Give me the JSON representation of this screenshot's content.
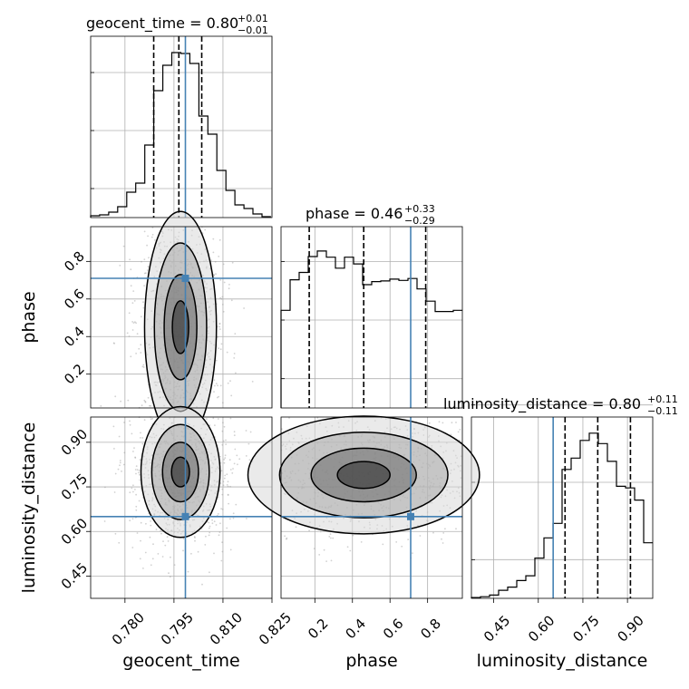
{
  "chart_data": {
    "type": "corner",
    "parameters": [
      "geocent_time",
      "phase",
      "luminosity_distance"
    ],
    "truths": {
      "geocent_time": 0.7985,
      "phase": 0.71,
      "luminosity_distance": 0.65
    },
    "colors": {
      "truth": "#4682b4",
      "line": "#000000",
      "grid": "#b0b0b0",
      "scatter": "#9a9a9a"
    },
    "grid": true,
    "titles": [
      {
        "name": "geocent_time = 0.80",
        "sup": "+0.01",
        "sub": "−0.01"
      },
      {
        "name": "phase = 0.46",
        "sup": "+0.33",
        "sub": "−0.29"
      },
      {
        "name": "luminosity_distance = 0.80",
        "sup": "+0.11",
        "sub": "−0.11"
      }
    ],
    "axis_labels": {
      "x": [
        "geocent_time",
        "phase",
        "luminosity_distance"
      ],
      "y": [
        "phase",
        "luminosity_distance"
      ]
    },
    "ranges": {
      "geocent_time": [
        0.7695,
        0.825
      ],
      "phase": [
        0.02,
        0.985
      ],
      "luminosity_distance": [
        0.375,
        0.985
      ]
    },
    "ticks": {
      "geocent_time": {
        "values": [
          0.78,
          0.795,
          0.81,
          0.825
        ],
        "labels": [
          "0.780",
          "0.795",
          "0.810",
          "0.825"
        ]
      },
      "phase": {
        "values": [
          0.2,
          0.4,
          0.6,
          0.8
        ],
        "labels": [
          "0.2",
          "0.4",
          "0.6",
          "0.8"
        ]
      },
      "luminosity_distance": {
        "values": [
          0.45,
          0.6,
          0.75,
          0.9
        ],
        "labels": [
          "0.45",
          "0.60",
          "0.75",
          "0.90"
        ]
      }
    },
    "histograms": {
      "geocent_time": {
        "edges": [
          0.7695,
          0.77226,
          0.77502,
          0.77778,
          0.78054,
          0.7833,
          0.78606,
          0.78882,
          0.79158,
          0.79434,
          0.7971,
          0.79986,
          0.80262,
          0.80538,
          0.80814,
          0.8109,
          0.81366,
          0.81642,
          0.81918,
          0.82194,
          0.8247
        ],
        "counts": [
          2,
          3,
          6,
          12,
          28,
          38,
          80,
          140,
          168,
          182,
          181,
          170,
          112,
          92,
          52,
          30,
          14,
          10,
          4,
          1
        ],
        "quantiles": [
          0.7888,
          0.7965,
          0.8035
        ],
        "ymax": 200,
        "yticks": [
          32,
          96,
          160
        ]
      },
      "phase": {
        "edges": [
          0.02,
          0.0683,
          0.1165,
          0.1648,
          0.213,
          0.2613,
          0.3095,
          0.3578,
          0.406,
          0.4543,
          0.5025,
          0.5508,
          0.599,
          0.6473,
          0.6955,
          0.7438,
          0.792,
          0.8403,
          0.8885,
          0.9368,
          0.985
        ],
        "counts": [
          160,
          210,
          222,
          248,
          257,
          247,
          229,
          247,
          236,
          202,
          207,
          208,
          211,
          209,
          212,
          195,
          175,
          158,
          158,
          160
        ],
        "quantiles": [
          0.17,
          0.46,
          0.79
        ],
        "ymax": 297,
        "yticks": [
          48,
          144,
          240
        ]
      },
      "luminosity_distance": {
        "edges": [
          0.375,
          0.4055,
          0.436,
          0.4665,
          0.497,
          0.5275,
          0.558,
          0.5885,
          0.619,
          0.6495,
          0.68,
          0.7105,
          0.741,
          0.7715,
          0.802,
          0.8325,
          0.863,
          0.8935,
          0.924,
          0.9545,
          0.985
        ],
        "counts": [
          1,
          2,
          4,
          10,
          14,
          22,
          28,
          50,
          75,
          93,
          160,
          174,
          196,
          205,
          192,
          170,
          139,
          137,
          122,
          69
        ],
        "quantiles": [
          0.69,
          0.8,
          0.91
        ],
        "ymax": 225,
        "yticks": [
          48,
          144,
          240
        ]
      }
    },
    "joint_2d": [
      {
        "x": "geocent_time",
        "y": "phase",
        "x_center": 0.797,
        "y_center": 0.45,
        "x_sigma": 0.005,
        "y_sigma": 0.28
      },
      {
        "x": "geocent_time",
        "y": "luminosity_distance",
        "x_center": 0.797,
        "y_center": 0.8,
        "x_sigma": 0.0055,
        "y_sigma": 0.1
      },
      {
        "x": "phase",
        "y": "luminosity_distance",
        "x_center": 0.46,
        "y_center": 0.79,
        "x_sigma": 0.28,
        "y_sigma": 0.09
      }
    ]
  }
}
